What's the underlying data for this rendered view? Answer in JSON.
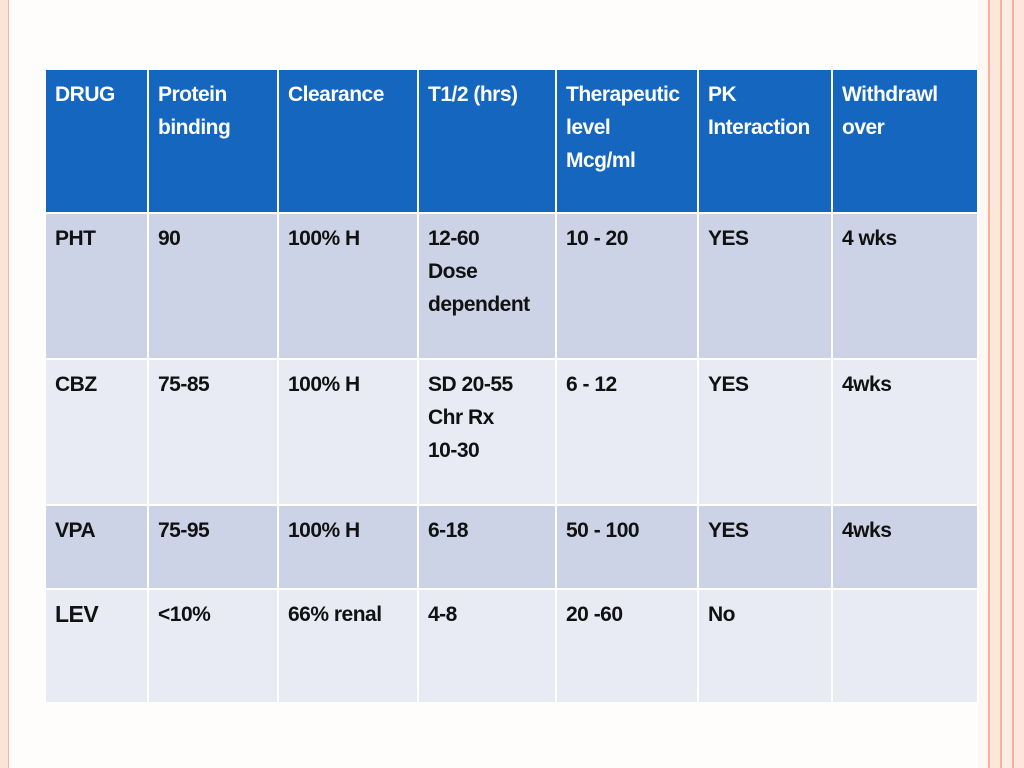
{
  "table": {
    "headers": [
      "DRUG",
      "Protein\nbinding",
      "Clearance",
      "T1/2 (hrs)",
      "Therapeutic\nlevel\nMcg/ml",
      "PK\nInteraction",
      "Withdrawl\nover"
    ],
    "rows": [
      {
        "drug": "PHT",
        "protein_binding": "90",
        "clearance": "100% H",
        "half_life": "12-60\nDose\ndependent",
        "therapeutic_level": "10 - 20",
        "pk_interaction": "YES",
        "withdrawal": "4 wks"
      },
      {
        "drug": "CBZ",
        "protein_binding": "75-85",
        "clearance": "100% H",
        "half_life": "SD 20-55\nChr Rx\n10-30",
        "therapeutic_level": "6 - 12",
        "pk_interaction": "YES",
        "withdrawal": "4wks"
      },
      {
        "drug": "VPA",
        "protein_binding": "75-95",
        "clearance": "100% H",
        "half_life": "6-18",
        "therapeutic_level": "50 - 100",
        "pk_interaction": "YES",
        "withdrawal": "4wks"
      },
      {
        "drug": "LEV",
        "protein_binding": "<10%",
        "clearance": "66% renal",
        "half_life": "4-8",
        "therapeutic_level": "20 -60",
        "pk_interaction": "No",
        "withdrawal": ""
      }
    ]
  },
  "colors": {
    "header_bg": "#1566bf",
    "row_dark": "#ccd3e6",
    "row_light": "#e8ebf4",
    "frame_accent": "#f3b49b"
  }
}
